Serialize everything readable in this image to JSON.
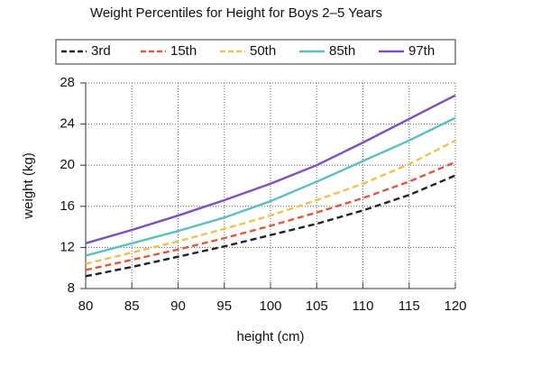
{
  "chart_data": {
    "type": "line",
    "title": "Weight Percentiles for Height for Boys 2–5 Years",
    "x_label": "height (cm)",
    "y_label": "weight (kg)",
    "x": [
      80,
      85,
      90,
      95,
      100,
      105,
      110,
      115,
      120
    ],
    "series": [
      {
        "name": "3rd",
        "color": "#222222",
        "style": "dashed",
        "values": [
          9.2,
          10.1,
          11.1,
          12.1,
          13.2,
          14.3,
          15.6,
          17.1,
          19.0
        ]
      },
      {
        "name": "15th",
        "color": "#e0583c",
        "style": "dashed",
        "values": [
          9.8,
          10.8,
          11.8,
          12.9,
          14.1,
          15.4,
          16.8,
          18.4,
          20.3
        ]
      },
      {
        "name": "50th",
        "color": "#f5c04a",
        "style": "dashed",
        "values": [
          10.4,
          11.5,
          12.6,
          13.8,
          15.1,
          16.6,
          18.2,
          20.1,
          22.4
        ]
      },
      {
        "name": "85th",
        "color": "#5bbfc0",
        "style": "solid",
        "values": [
          11.2,
          12.4,
          13.6,
          14.9,
          16.5,
          18.4,
          20.4,
          22.4,
          24.6
        ]
      },
      {
        "name": "97th",
        "color": "#7e4fbf",
        "style": "solid",
        "values": [
          12.4,
          13.7,
          15.1,
          16.6,
          18.2,
          20.0,
          22.2,
          24.5,
          26.8
        ]
      }
    ],
    "xlim": [
      80,
      120
    ],
    "xticks": [
      80,
      85,
      90,
      95,
      100,
      105,
      110,
      115,
      120
    ],
    "ylim": [
      8,
      28
    ],
    "yticks": [
      8,
      12,
      16,
      20,
      24,
      28
    ],
    "grid": true,
    "legend": "top"
  }
}
